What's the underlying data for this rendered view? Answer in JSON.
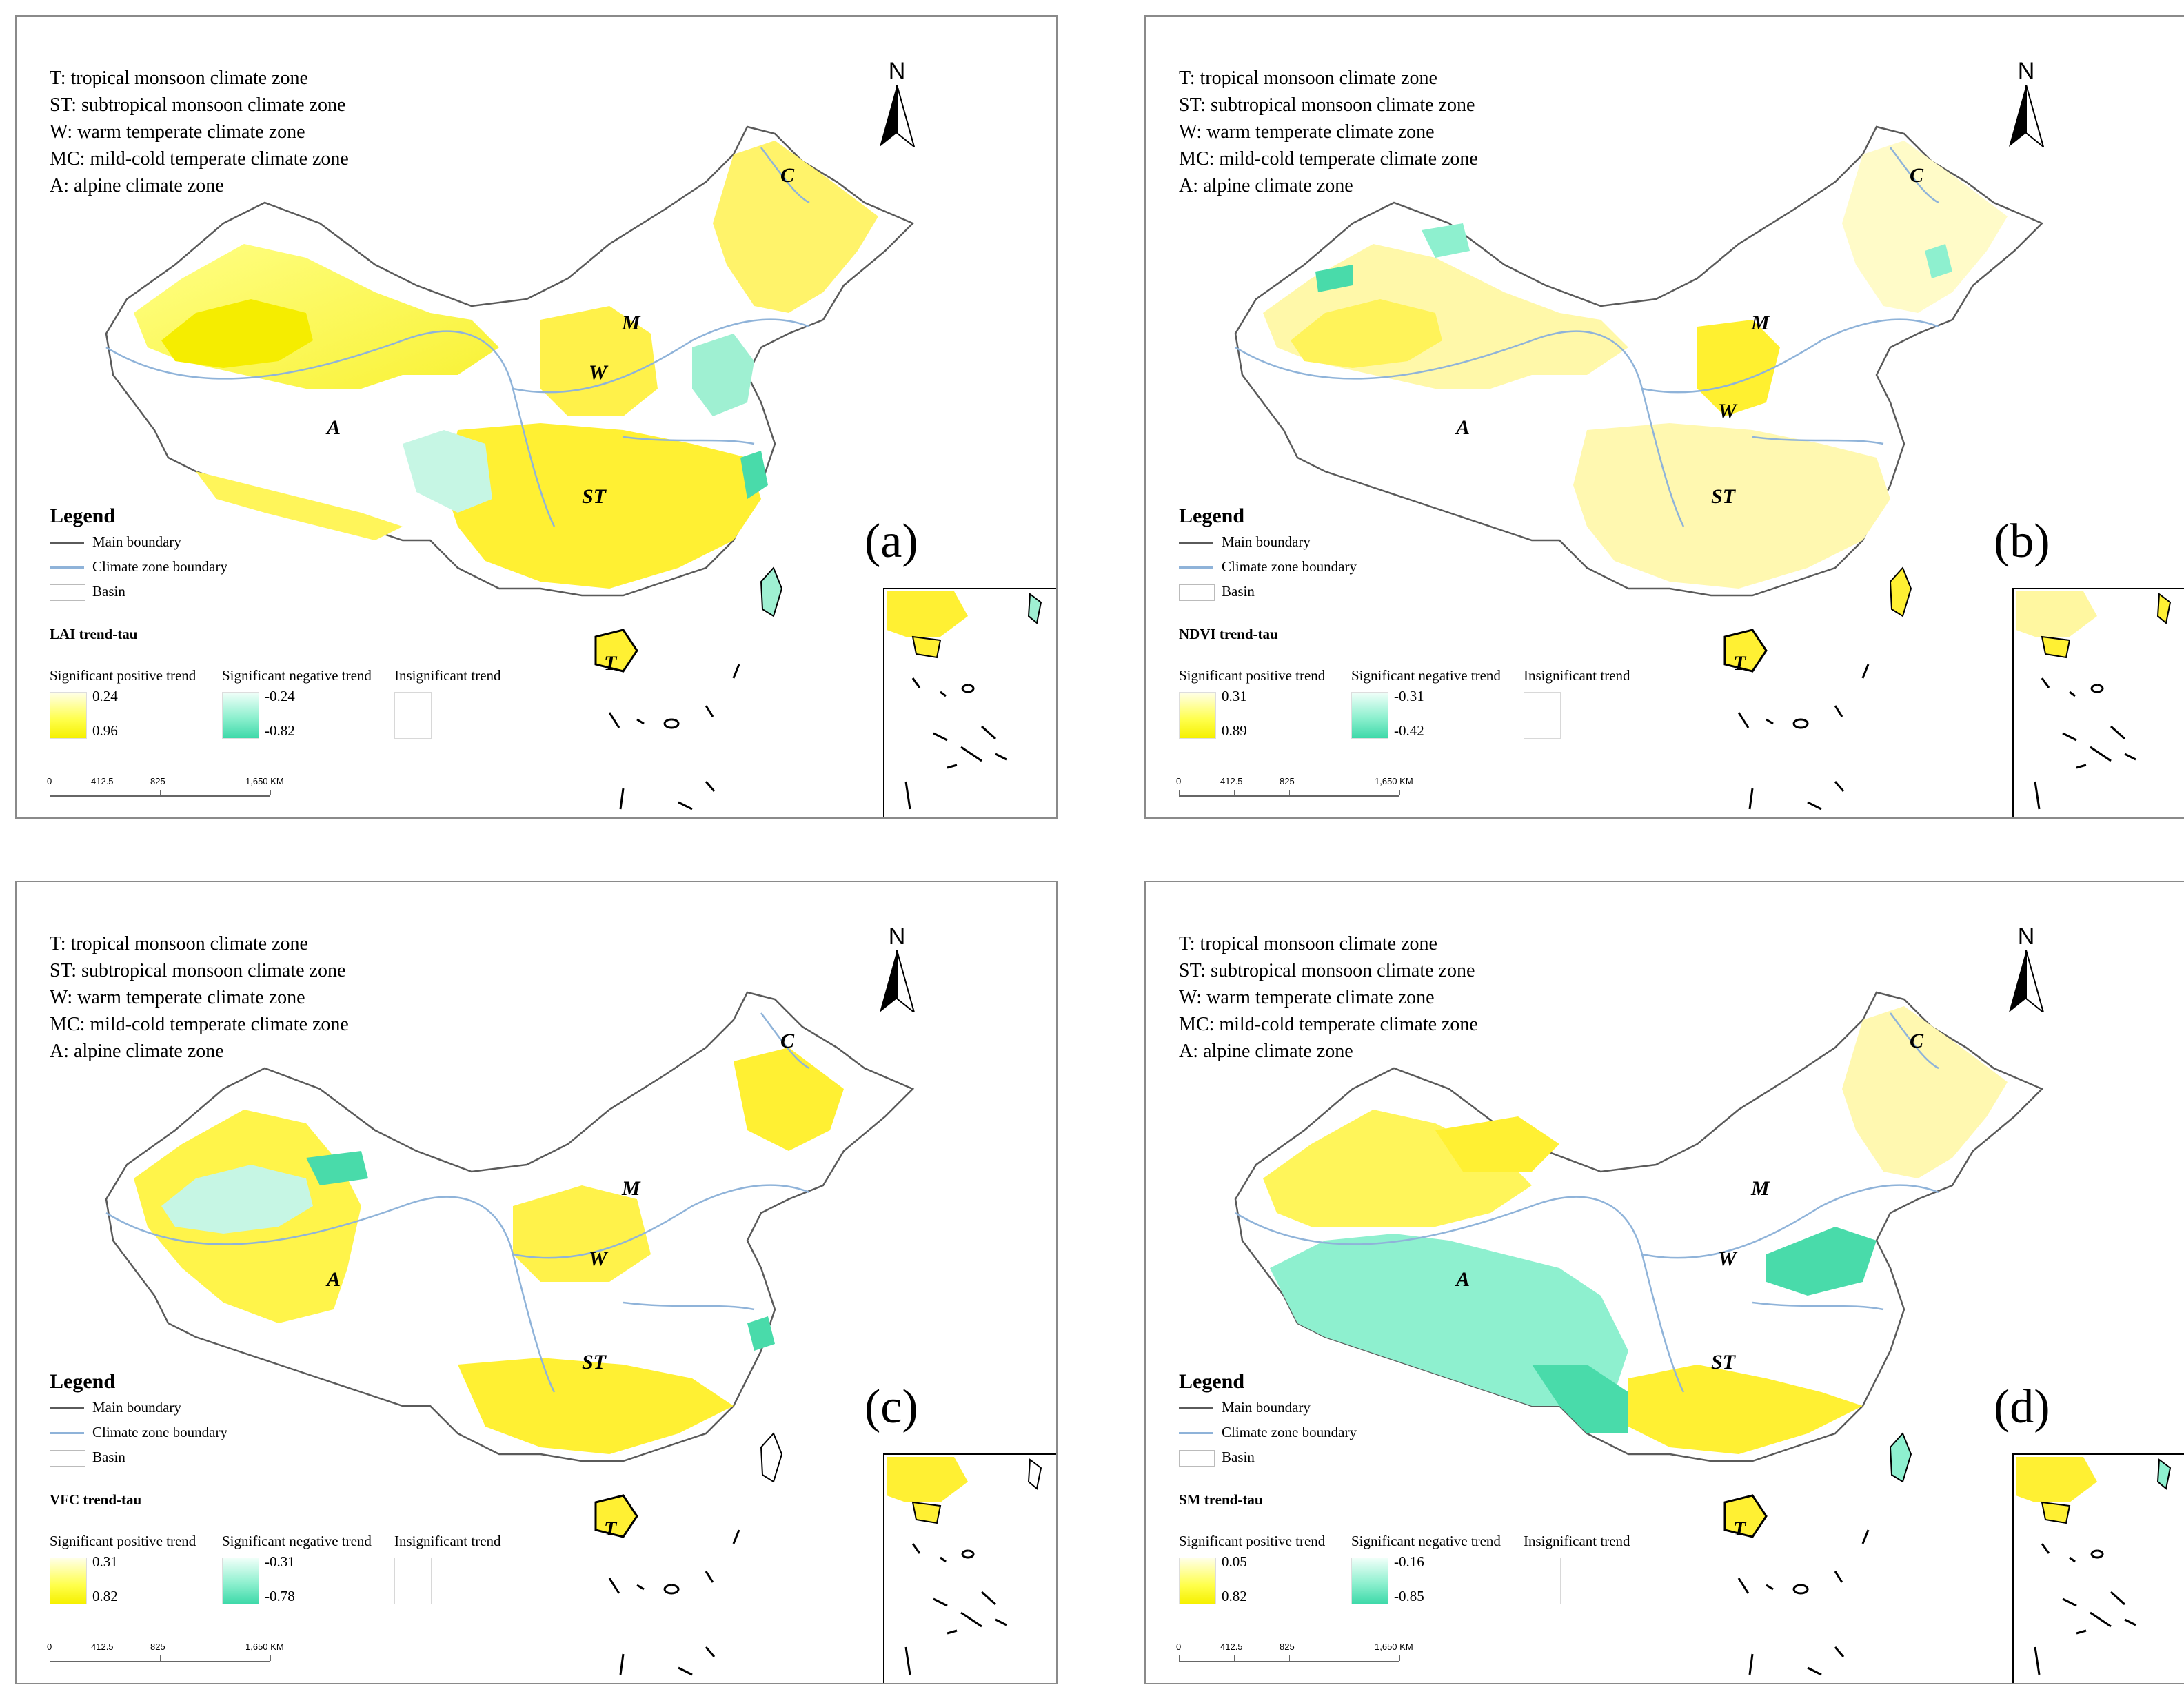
{
  "zone_legend": [
    "T: tropical monsoon climate zone",
    "ST: subtropical monsoon climate zone",
    "W: warm temperate climate zone",
    "MC: mild-cold temperate climate zone",
    "A: alpine climate zone"
  ],
  "zone_codes": {
    "C": "C",
    "M": "M",
    "W": "W",
    "A": "A",
    "ST": "ST",
    "T": "T"
  },
  "north": "N",
  "legend_title": "Legend",
  "legend_items": {
    "main_boundary": "Main boundary",
    "climate_boundary": "Climate zone boundary",
    "basin": "Basin"
  },
  "categories": {
    "positive": "Significant positive trend",
    "negative": "Significant negative trend",
    "insignificant": "Insignificant trend"
  },
  "scale_bar": {
    "labels": [
      "0",
      "412.5",
      "825",
      "1,650 KM"
    ]
  },
  "colors": {
    "positive_light": "#ffffe8",
    "positive_dark": "#f5f000",
    "negative_light": "#f0fff9",
    "negative_dark": "#3ed9a9",
    "border": "#5a5a5a",
    "climate_line": "#8fb3d9"
  },
  "panels": [
    {
      "label": "(a)",
      "variable": "LAI trend-tau",
      "pos_min": "0.24",
      "pos_max": "0.96",
      "neg_min": "-0.24",
      "neg_max": "-0.82"
    },
    {
      "label": "(b)",
      "variable": "NDVI trend-tau",
      "pos_min": "0.31",
      "pos_max": "0.89",
      "neg_min": "-0.31",
      "neg_max": "-0.42"
    },
    {
      "label": "(c)",
      "variable": "VFC trend-tau",
      "pos_min": "0.31",
      "pos_max": "0.82",
      "neg_min": "-0.31",
      "neg_max": "-0.78"
    },
    {
      "label": "(d)",
      "variable": "SM trend-tau",
      "pos_min": "0.05",
      "pos_max": "0.82",
      "neg_min": "-0.16",
      "neg_max": "-0.85"
    }
  ]
}
